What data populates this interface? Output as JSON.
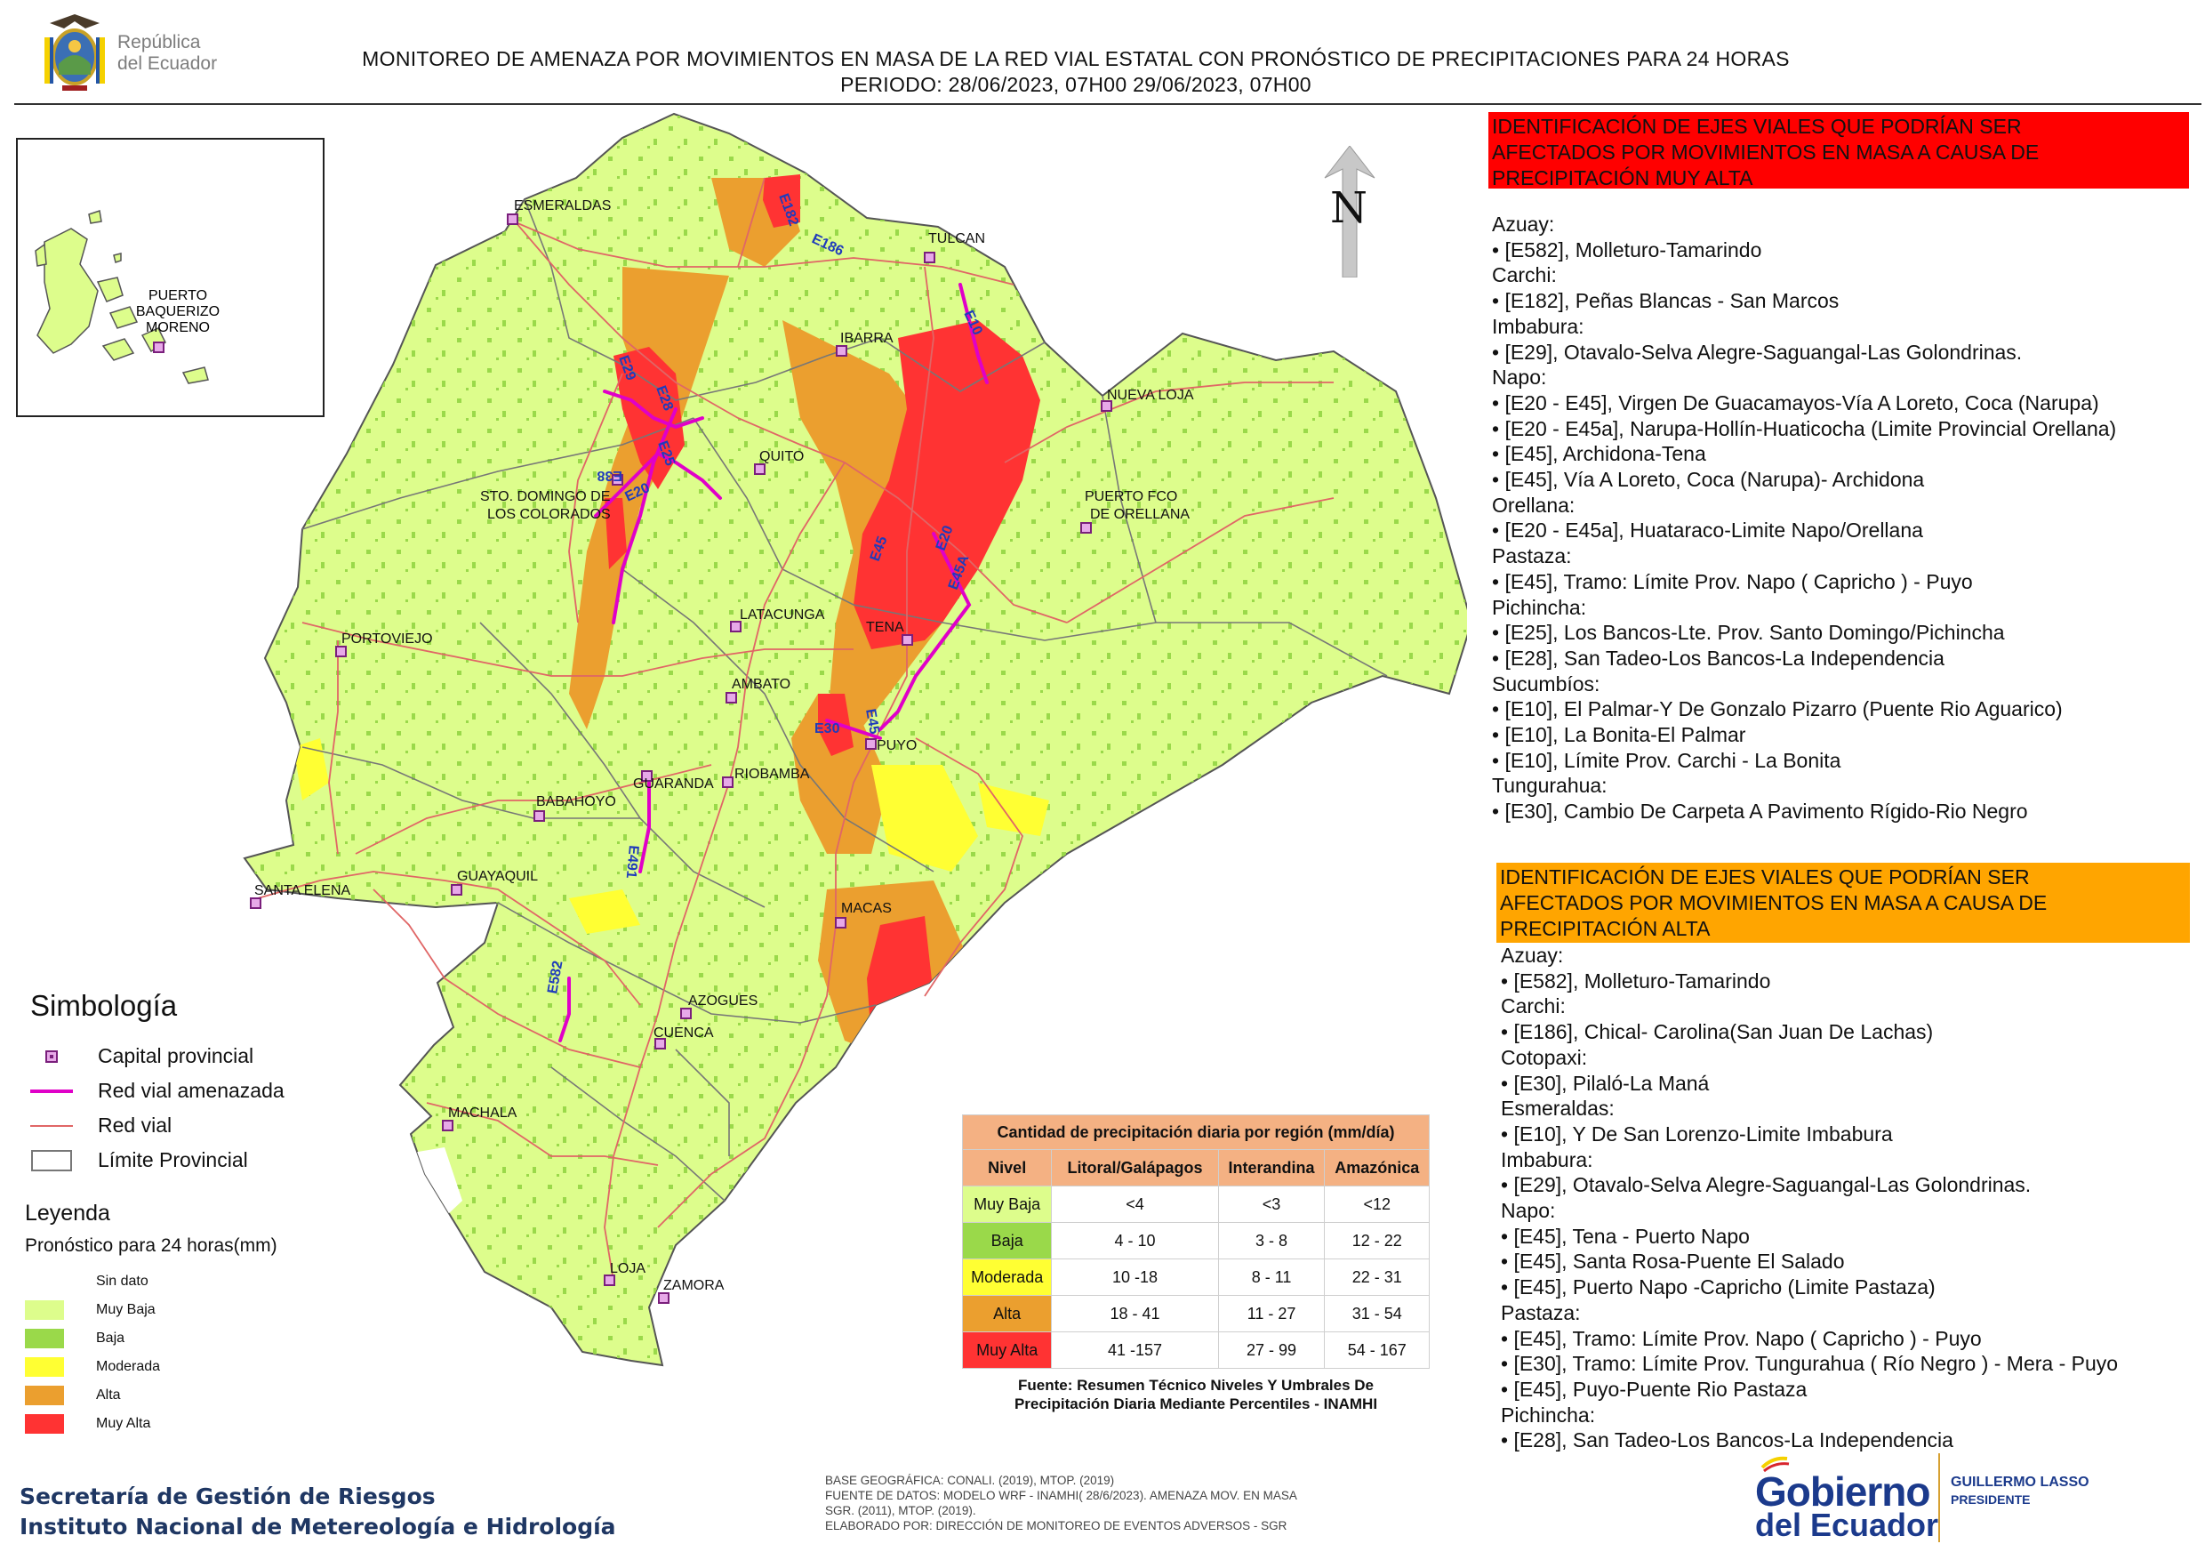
{
  "header": {
    "republic_lines": [
      "República",
      "del Ecuador"
    ],
    "title_line1": "MONITOREO DE AMENAZA POR MOVIMIENTOS EN MASA DE LA RED VIAL  ESTATAL  CON PRONÓSTICO  DE  PRECIPITACIONES PARA 24 HORAS",
    "title_line2": "PERIODO: 28/06/2023, 07H00 29/06/2023, 07H00"
  },
  "north_label": "N",
  "colors": {
    "muy_baja": "#ddfd8c",
    "baja": "#9ad94a",
    "moderada": "#ffff33",
    "alta": "#eb9f2f",
    "muy_alta": "#ff3333",
    "road_threatened": "#e000c8",
    "road": "#e06666",
    "capital": "#7a1f7c",
    "red_panel": "#ff0000",
    "orange_panel": "#ffa500"
  },
  "map": {
    "cities": [
      {
        "name": "ESMERALDAS"
      },
      {
        "name": "TULCAN"
      },
      {
        "name": "IBARRA"
      },
      {
        "name": "NUEVA LOJA"
      },
      {
        "name": "QUITO"
      },
      {
        "name": "STO. DOMINGO DE"
      },
      {
        "name": "LOS COLORADOS"
      },
      {
        "name": "PUERTO FCO"
      },
      {
        "name": "DE ORELLANA"
      },
      {
        "name": "LATACUNGA"
      },
      {
        "name": "TENA"
      },
      {
        "name": "PORTOVIEJO"
      },
      {
        "name": "AMBATO"
      },
      {
        "name": "PUYO"
      },
      {
        "name": "GUARANDA"
      },
      {
        "name": "RIOBAMBA"
      },
      {
        "name": "BABAHOYO"
      },
      {
        "name": "GUAYAQUIL"
      },
      {
        "name": "SANTA ELENA"
      },
      {
        "name": "MACAS"
      },
      {
        "name": "AZOGUES"
      },
      {
        "name": "CUENCA"
      },
      {
        "name": "MACHALA"
      },
      {
        "name": "LOJA"
      },
      {
        "name": "ZAMORA"
      }
    ],
    "inset_city": [
      "PUERTO",
      "BAQUERIZO",
      "MORENO"
    ],
    "road_labels": [
      "E182",
      "E186",
      "E10",
      "E29",
      "E28",
      "E25",
      "E38",
      "E20",
      "E45",
      "E20",
      "E45A",
      "E30",
      "E45",
      "E491",
      "E582"
    ]
  },
  "symbology": {
    "title": "Simbología",
    "items": [
      {
        "label": "Capital provincial",
        "icon": "capital-square-icon"
      },
      {
        "label": "Red vial amenazada",
        "icon": "magenta-line-icon"
      },
      {
        "label": "Red vial",
        "icon": "red-line-icon"
      },
      {
        "label": "Límite Provincial",
        "icon": "boundary-box-icon"
      }
    ]
  },
  "legend": {
    "title": "Leyenda",
    "subtitle": "Pronóstico para 24 horas(mm)",
    "items": [
      {
        "label": "Sin dato",
        "color": "#ffffff"
      },
      {
        "label": "Muy Baja",
        "color": "#ddfd8c"
      },
      {
        "label": "Baja",
        "color": "#9ad94a"
      },
      {
        "label": "Moderada",
        "color": "#ffff33"
      },
      {
        "label": "Alta",
        "color": "#eb9f2f"
      },
      {
        "label": "Muy Alta",
        "color": "#ff3333"
      }
    ]
  },
  "precip_table": {
    "caption": "Cantidad de precipitación diaria por región (mm/día)",
    "headers": [
      "Nivel",
      "Litoral/Galápagos",
      "Interandina",
      "Amazónica"
    ],
    "rows": [
      {
        "nivel": "Muy Baja",
        "color": "#ddfd8c",
        "litoral": "<4",
        "interandina": "<3",
        "amazonica": "<12"
      },
      {
        "nivel": "Baja",
        "color": "#9ad94a",
        "litoral": "4 - 10",
        "interandina": "3 - 8",
        "amazonica": "12 - 22"
      },
      {
        "nivel": "Moderada",
        "color": "#ffff33",
        "litoral": "10 -18",
        "interandina": "8 - 11",
        "amazonica": "22 - 31"
      },
      {
        "nivel": "Alta",
        "color": "#eb9f2f",
        "litoral": "18 - 41",
        "interandina": "11 - 27",
        "amazonica": "31 - 54"
      },
      {
        "nivel": "Muy Alta",
        "color": "#ff3333",
        "litoral": "41 -157",
        "interandina": "27 - 99",
        "amazonica": "54 - 167"
      }
    ],
    "source_line1": "Fuente: Resumen Técnico Niveles Y Umbrales De",
    "source_line2": "Precipitación Diaria Mediante Percentiles - INAMHI"
  },
  "red_panel": {
    "heading": [
      "IDENTIFICACIÓN DE EJES VIALES QUE PODRÍAN SER",
      "AFECTADOS POR MOVIMIENTOS EN MASA A CAUSA DE",
      "PRECIPITACIÓN MUY ALTA"
    ],
    "lines": [
      "Azuay:",
      "• [E582], Molleturo-Tamarindo",
      "Carchi:",
      "• [E182], Peñas Blancas - San Marcos",
      "Imbabura:",
      "• [E29], Otavalo-Selva Alegre-Saguangal-Las Golondrinas.",
      "Napo:",
      "• [E20 - E45], Virgen De Guacamayos-Vía A Loreto, Coca (Narupa)",
      "• [E20 - E45a], Narupa-Hollín-Huaticocha (Limite Provincial Orellana)",
      "• [E45], Archidona-Tena",
      "• [E45], Vía A Loreto, Coca (Narupa)- Archidona",
      "Orellana:",
      "• [E20 - E45a], Huataraco-Limite Napo/Orellana",
      "Pastaza:",
      "• [E45], Tramo: Límite Prov. Napo ( Capricho ) - Puyo",
      "Pichincha:",
      "• [E25], Los Bancos-Lte. Prov. Santo Domingo/Pichincha",
      "• [E28], San Tadeo-Los Bancos-La Independencia",
      "Sucumbíos:",
      "• [E10], El Palmar-Y De Gonzalo Pizarro (Puente Rio Aguarico)",
      "• [E10], La Bonita-El Palmar",
      "• [E10], Límite Prov. Carchi - La Bonita",
      "Tungurahua:",
      "• [E30], Cambio De Carpeta A Pavimento Rígido-Rio Negro"
    ]
  },
  "orange_panel": {
    "heading": [
      "IDENTIFICACIÓN DE EJES VIALES QUE PODRÍAN SER",
      "AFECTADOS POR MOVIMIENTOS EN MASA A CAUSA DE",
      "PRECIPITACIÓN  ALTA"
    ],
    "lines": [
      "Azuay:",
      "• [E582], Molleturo-Tamarindo",
      "Carchi:",
      "• [E186], Chical- Carolina(San Juan De Lachas)",
      "Cotopaxi:",
      "• [E30], Pilaló-La Maná",
      "Esmeraldas:",
      "• [E10], Y De San Lorenzo-Limite Imbabura",
      "Imbabura:",
      "• [E29], Otavalo-Selva Alegre-Saguangal-Las Golondrinas.",
      "Napo:",
      "• [E45], Tena - Puerto Napo",
      "• [E45], Santa Rosa-Puente El Salado",
      "• [E45], Puerto Napo -Capricho (Limite Pastaza)",
      "Pastaza:",
      "• [E45], Tramo: Límite Prov. Napo ( Capricho ) - Puyo",
      "• [E30], Tramo: Límite Prov. Tungurahua ( Río Negro ) - Mera - Puyo",
      "• [E45], Puyo-Puente Rio Pastaza",
      "Pichincha:",
      "• [E28], San Tadeo-Los Bancos-La Independencia"
    ]
  },
  "footer": {
    "org_line1": "Secretaría de Gestión de Riesgos",
    "org_line2": "Instituto Nacional de Metereología e Hidrología",
    "credits": [
      "BASE GEOGRÁFICA: CONALI. (2019), MTOP. (2019)",
      "FUENTE DE DATOS: MODELO WRF - INAMHI( 28/6/2023).  AMENAZA MOV. EN MASA",
      "SGR. (2011), MTOP. (2019).",
      "ELABORADO POR: DIRECCIÓN DE MONITOREO DE EVENTOS ADVERSOS - SGR"
    ],
    "gob_line1": "Gobierno",
    "gob_line2": "del Ecuador",
    "president_line1": "GUILLERMO LASSO",
    "president_line2": "PRESIDENTE"
  }
}
